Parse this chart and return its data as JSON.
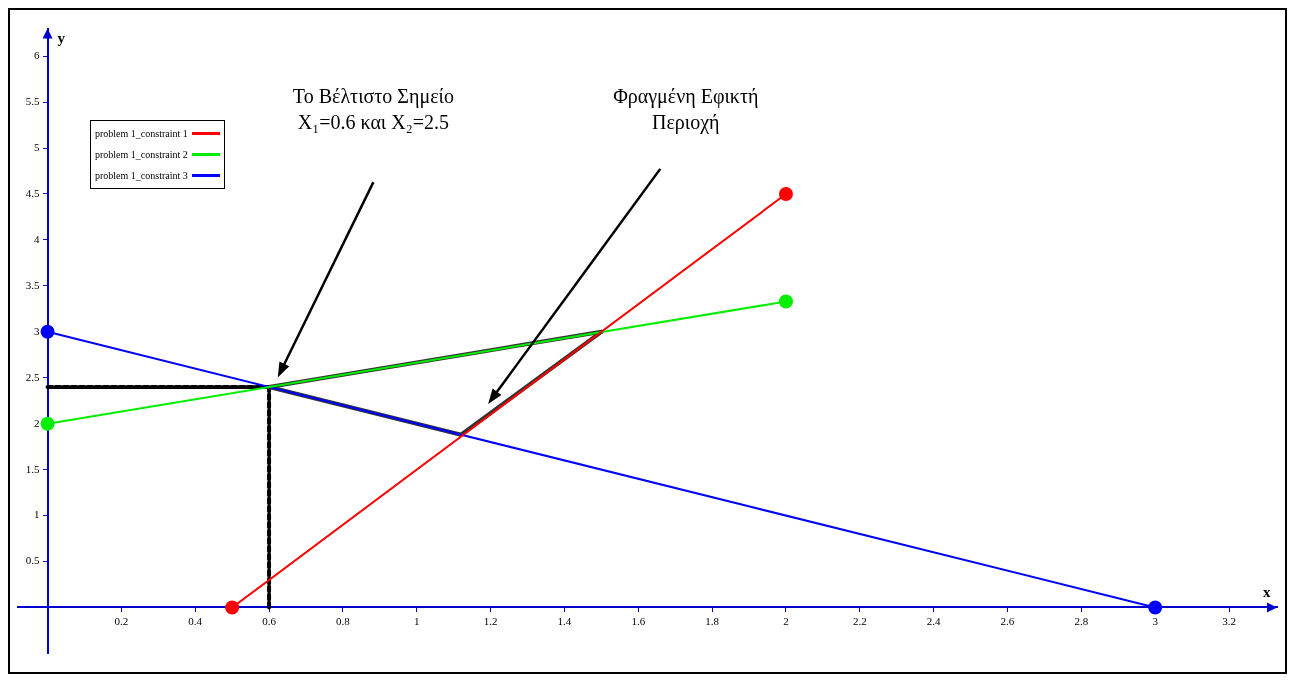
{
  "chart_data": {
    "type": "line",
    "xlabel": "x",
    "ylabel": "y",
    "xlim": [
      -0.08,
      3.33
    ],
    "ylim": [
      -0.5,
      6.3
    ],
    "xticks": [
      0.2,
      0.4,
      0.6,
      0.8,
      1,
      1.2,
      1.4,
      1.6,
      1.8,
      2,
      2.2,
      2.4,
      2.6,
      2.8,
      3,
      3.2
    ],
    "yticks": [
      0.5,
      1,
      1.5,
      2,
      2.5,
      3,
      3.5,
      4,
      4.5,
      5,
      5.5,
      6
    ],
    "grid": false,
    "legend": "top left",
    "series": [
      {
        "name": "problem 1_constraint 1",
        "color": "#ff0000",
        "x": [
          0.5,
          2
        ],
        "values": [
          0,
          4.5
        ],
        "marker": "circle"
      },
      {
        "name": "problem 1_constraint 2",
        "color": "#00ee00",
        "x": [
          0,
          2
        ],
        "values": [
          2,
          3.33
        ],
        "marker": "circle"
      },
      {
        "name": "problem 1_constraint 3",
        "color": "#0000ff",
        "x": [
          0,
          3
        ],
        "values": [
          3,
          0
        ],
        "marker": "circle"
      },
      {
        "color": "#333333",
        "x": [
          0.6,
          1.5
        ],
        "values": [
          2.4,
          3
        ],
        "marker": "none"
      },
      {
        "color": "#333333",
        "x": [
          1.12,
          1.5
        ],
        "values": [
          1.88,
          3
        ],
        "marker": "none"
      },
      {
        "color": "#333333",
        "x": [
          0.6,
          1.12
        ],
        "values": [
          2.4,
          1.88
        ],
        "marker": "none"
      },
      {
        "color": "#000000",
        "x": [
          0.6,
          0.6
        ],
        "values": [
          0,
          2.4
        ],
        "marker": "none",
        "line_style": "dashed"
      },
      {
        "color": "#000000",
        "x": [
          0,
          0.6
        ],
        "values": [
          2.4,
          2.4
        ],
        "marker": "none",
        "line_style": "dashed"
      }
    ],
    "annotations": [
      "Το Βέλτιστο Σημείο X₁=0.6 και X₂=2.5",
      "Φραγμένη Εφικτή Περιοχή"
    ]
  }
}
